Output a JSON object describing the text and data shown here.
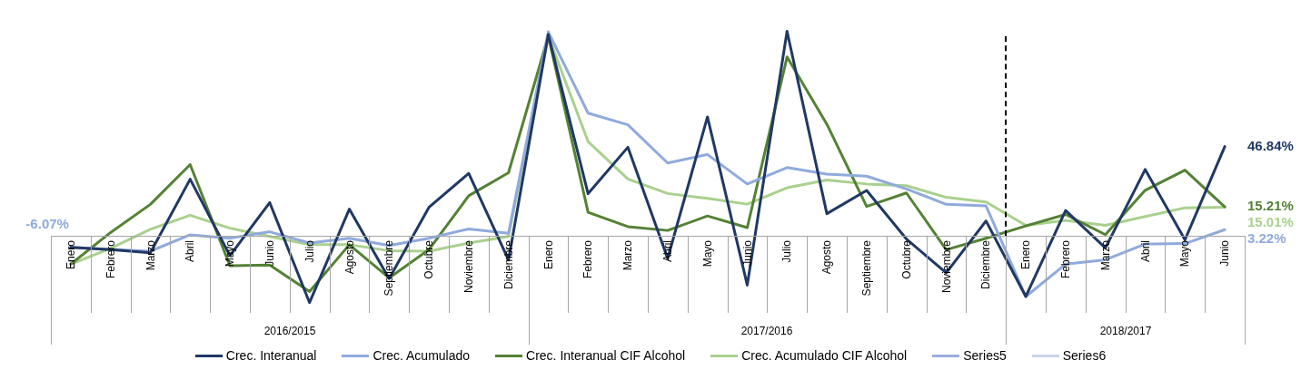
{
  "chart_data": {
    "type": "line",
    "categories": [
      "Enero",
      "Febrero",
      "Marzo",
      "Abril",
      "Mayo",
      "Junio",
      "Julio",
      "Agosto",
      "Septiembre",
      "Octubre",
      "Noviembre",
      "Diciembre",
      "Enero",
      "Febrero",
      "Marzo",
      "Abril",
      "Mayo",
      "Junio",
      "Julio",
      "Agosto",
      "Septiembre",
      "Octubre",
      "Noviembre",
      "Diciembre",
      "Enero",
      "Febrero",
      "Marzo",
      "Abril",
      "Mayo",
      "Junio"
    ],
    "series": [
      {
        "name": "Crec. Interanual",
        "color": "#203864",
        "values": [
          -6.1,
          -7.3,
          -8.9,
          29.7,
          -10.4,
          17.4,
          -35.1,
          14.0,
          -22.5,
          14.9,
          32.8,
          -12.7,
          105.7,
          22.1,
          46.5,
          -11.9,
          62.4,
          -25.9,
          107.4,
          11.6,
          23.8,
          -1.7,
          -19.5,
          7.8,
          -31.9,
          13.3,
          -6.4,
          34.8,
          -2.1,
          46.84
        ],
        "value_labels": [
          null,
          null,
          null,
          null,
          null,
          null,
          null,
          null,
          null,
          null,
          null,
          null,
          null,
          null,
          null,
          null,
          null,
          null,
          null,
          null,
          null,
          null,
          null,
          null,
          null,
          null,
          null,
          null,
          null,
          "46.84%"
        ]
      },
      {
        "name": "Crec. Acumulado",
        "color": "#8faadc",
        "values": [
          -6.07,
          -7.1,
          -8.1,
          0.5,
          -1.3,
          2.1,
          -3.8,
          -1.3,
          -5.1,
          -1.3,
          3.6,
          1.3,
          107.1,
          64.4,
          58.3,
          38.2,
          42.7,
          27.2,
          35.8,
          32.4,
          31.3,
          24.6,
          16.5,
          15.7,
          -31.9,
          -14.9,
          -12.6,
          -4.3,
          -4.1,
          3.22
        ],
        "value_labels": [
          "-6.07%",
          null,
          null,
          null,
          null,
          null,
          null,
          null,
          null,
          null,
          null,
          null,
          null,
          null,
          null,
          null,
          null,
          null,
          null,
          null,
          null,
          null,
          null,
          null,
          null,
          null,
          null,
          null,
          null,
          "3.22%"
        ]
      },
      {
        "name": "Crec. Interanual CIF Alcohol",
        "color": "#548235",
        "values": [
          -14.9,
          1.7,
          16.5,
          37.4,
          -15.7,
          -15.4,
          -29.3,
          -4.7,
          -22.1,
          -7.3,
          21.0,
          33.1,
          104.9,
          12.3,
          4.8,
          2.8,
          10.4,
          4.3,
          93.9,
          58.6,
          15.4,
          22.5,
          -7.3,
          -1.3,
          5.2,
          11.2,
          0.6,
          23.9,
          34.5,
          15.21
        ],
        "value_labels": [
          null,
          null,
          null,
          null,
          null,
          null,
          null,
          null,
          null,
          null,
          null,
          null,
          null,
          null,
          null,
          null,
          null,
          null,
          null,
          null,
          null,
          null,
          null,
          null,
          null,
          null,
          null,
          null,
          null,
          "15.21%"
        ]
      },
      {
        "name": "Crec. Acumulado CIF Alcohol",
        "color": "#a9d18e",
        "values": [
          -14.9,
          -6.6,
          3.4,
          10.8,
          4.0,
          -0.4,
          -4.7,
          -4.7,
          -7.8,
          -8.1,
          -3.8,
          -0.4,
          104.9,
          49.5,
          29.8,
          22.2,
          19.6,
          16.6,
          25.2,
          29.3,
          27.2,
          26.3,
          20.2,
          17.7,
          5.5,
          8.1,
          5.5,
          10.1,
          14.7,
          15.01
        ],
        "value_labels": [
          null,
          null,
          null,
          null,
          null,
          null,
          null,
          null,
          null,
          null,
          null,
          null,
          null,
          null,
          null,
          null,
          null,
          null,
          null,
          null,
          null,
          null,
          null,
          null,
          null,
          null,
          null,
          null,
          null,
          "15.01%"
        ]
      },
      {
        "name": "Series5",
        "color": "#9aaedb",
        "values": [
          null,
          null,
          null,
          null,
          null,
          null,
          null,
          null,
          null,
          null,
          null,
          null,
          null,
          null,
          null,
          null,
          null,
          null,
          null,
          null,
          null,
          null,
          null,
          null,
          null,
          null,
          null,
          null,
          null,
          null
        ]
      },
      {
        "name": "Series6",
        "color": "#c9d3ea",
        "values": [
          null,
          null,
          null,
          null,
          null,
          null,
          null,
          null,
          null,
          null,
          null,
          null,
          null,
          null,
          null,
          null,
          null,
          null,
          null,
          null,
          null,
          null,
          null,
          null,
          null,
          null,
          null,
          null,
          null,
          null
        ]
      }
    ],
    "annotations": [
      "2016/2015",
      "2017/2016",
      "2018/2017"
    ],
    "tick_labels": "x",
    "legend": "bottom"
  }
}
